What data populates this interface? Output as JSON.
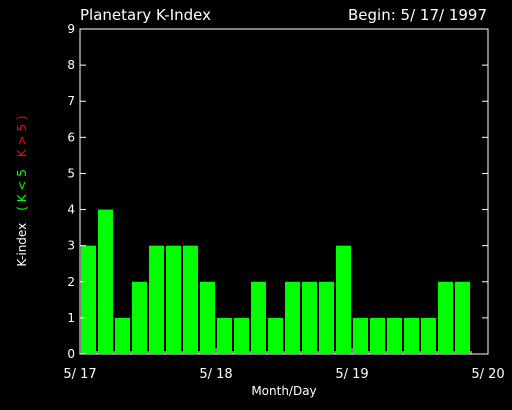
{
  "chart_data": {
    "type": "bar",
    "title": "Planetary K-Index",
    "begin_label": "Begin: 5/ 17/ 1997",
    "xlabel": "Month/Day",
    "ylabel_parts": [
      {
        "text": "K-index",
        "color": "#ffffff"
      },
      {
        "text": "( K < 5",
        "color": "#00ff00"
      },
      {
        "text": "K > 5 )",
        "color": "#ff0000"
      }
    ],
    "ylim": [
      0,
      9
    ],
    "yticks": [
      "0",
      "1",
      "2",
      "3",
      "4",
      "5",
      "6",
      "7",
      "8",
      "9"
    ],
    "xlim": [
      0,
      24
    ],
    "xticks": [
      {
        "pos": 0,
        "label": "5/ 17"
      },
      {
        "pos": 8,
        "label": "5/ 18"
      },
      {
        "pos": 16,
        "label": "5/ 19"
      },
      {
        "pos": 24,
        "label": "5/ 20"
      }
    ],
    "bar_color": "#00ff00",
    "values": [
      3,
      4,
      1,
      2,
      3,
      3,
      3,
      2,
      1,
      1,
      2,
      1,
      2,
      2,
      2,
      3,
      1,
      1,
      1,
      1,
      1,
      2,
      2,
      0
    ],
    "grid": false
  }
}
